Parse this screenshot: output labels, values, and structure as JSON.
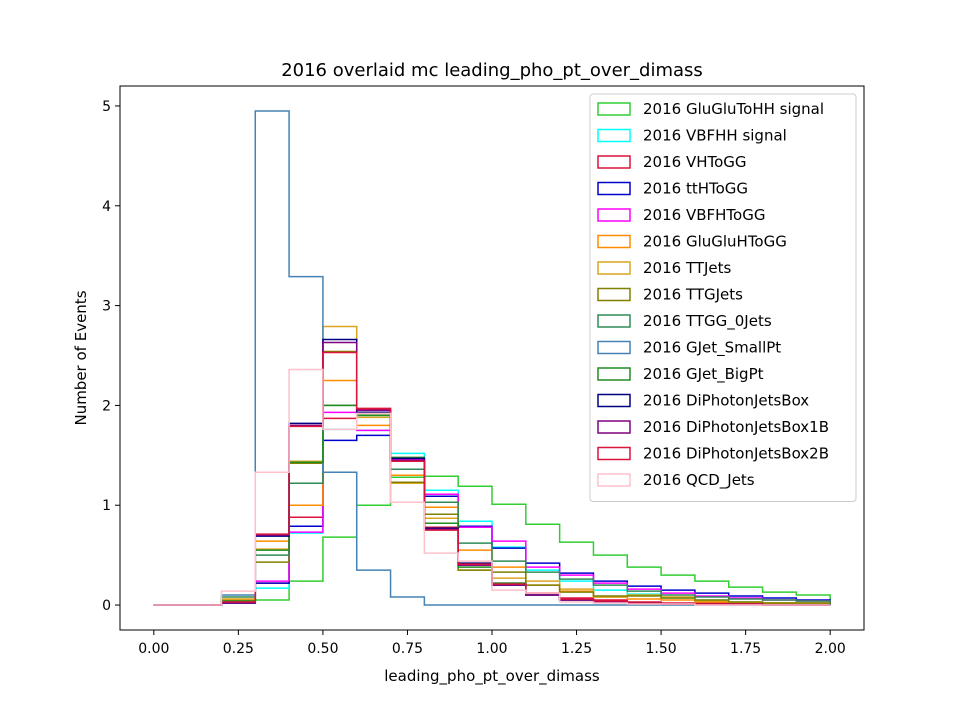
{
  "chart_data": {
    "type": "step-histogram",
    "title": "2016 overlaid mc leading_pho_pt_over_dimass",
    "xlabel": "leading_pho_pt_over_dimass",
    "ylabel": "Number of Events",
    "xlim": [
      -0.1,
      2.1
    ],
    "ylim": [
      -0.25,
      5.2
    ],
    "xticks": [
      0.0,
      0.25,
      0.5,
      0.75,
      1.0,
      1.25,
      1.5,
      1.75,
      2.0
    ],
    "xtick_labels": [
      "0.00",
      "0.25",
      "0.50",
      "0.75",
      "1.00",
      "1.25",
      "1.50",
      "1.75",
      "2.00"
    ],
    "yticks": [
      0,
      1,
      2,
      3,
      4,
      5
    ],
    "ytick_labels": [
      "0",
      "1",
      "2",
      "3",
      "4",
      "5"
    ],
    "bin_edges": [
      0.0,
      0.1,
      0.2,
      0.3,
      0.4,
      0.5,
      0.6,
      0.7,
      0.8,
      0.9,
      1.0,
      1.1,
      1.2,
      1.3,
      1.4,
      1.5,
      1.6,
      1.7,
      1.8,
      1.9,
      2.0
    ],
    "legend_position": "top-right",
    "series": [
      {
        "name": "2016 GluGluToHH signal",
        "color": "#32cd32",
        "values": [
          0,
          0,
          0.02,
          0.05,
          0.24,
          0.68,
          1.0,
          1.28,
          1.29,
          1.19,
          1.01,
          0.81,
          0.63,
          0.5,
          0.38,
          0.3,
          0.24,
          0.18,
          0.13,
          0.1
        ]
      },
      {
        "name": "2016 VBFHH signal",
        "color": "#00ffff",
        "values": [
          0,
          0,
          0.02,
          0.17,
          0.72,
          1.76,
          1.75,
          1.52,
          1.15,
          0.84,
          0.58,
          0.35,
          0.24,
          0.15,
          0.11,
          0.07,
          0.05,
          0.03,
          0.02,
          0.02
        ]
      },
      {
        "name": "2016 VHToGG",
        "color": "#dc143c",
        "values": [
          0,
          0,
          0.03,
          0.22,
          0.88,
          1.87,
          1.96,
          1.3,
          0.78,
          0.4,
          0.22,
          0.12,
          0.07,
          0.05,
          0.03,
          0.02,
          0.02,
          0.01,
          0.01,
          0.01
        ]
      },
      {
        "name": "2016 ttHToGG",
        "color": "#0000cd",
        "values": [
          0,
          0,
          0.02,
          0.22,
          0.79,
          1.65,
          1.7,
          1.44,
          1.09,
          0.79,
          0.57,
          0.42,
          0.32,
          0.24,
          0.19,
          0.15,
          0.12,
          0.09,
          0.07,
          0.05
        ]
      },
      {
        "name": "2016 VBFHToGG",
        "color": "#ff00ff",
        "values": [
          0,
          0,
          0.04,
          0.24,
          0.73,
          1.93,
          1.75,
          1.46,
          1.11,
          0.78,
          0.64,
          0.38,
          0.3,
          0.22,
          0.16,
          0.12,
          0.09,
          0.07,
          0.05,
          0.04
        ]
      },
      {
        "name": "2016 GluGluHToGG",
        "color": "#ff8c00",
        "values": [
          0,
          0,
          0.05,
          0.64,
          1.0,
          2.25,
          1.8,
          1.3,
          0.98,
          0.55,
          0.38,
          0.2,
          0.14,
          0.08,
          0.06,
          0.05,
          0.03,
          0.02,
          0.02,
          0.01
        ]
      },
      {
        "name": "2016 TTJets",
        "color": "#daa520",
        "values": [
          0,
          0,
          0.06,
          0.56,
          1.44,
          2.79,
          1.88,
          1.22,
          0.87,
          0.35,
          0.27,
          0.24,
          0.16,
          0.08,
          0.1,
          0.08,
          0.04,
          0.03,
          0.02,
          0.02
        ]
      },
      {
        "name": "2016 TTGJets",
        "color": "#808000",
        "values": [
          0,
          0,
          0.04,
          0.43,
          1.42,
          2.54,
          1.92,
          1.23,
          0.91,
          0.35,
          0.33,
          0.2,
          0.13,
          0.09,
          0.09,
          0.07,
          0.05,
          0.03,
          0.02,
          0.02
        ]
      },
      {
        "name": "2016 TTGG_0Jets",
        "color": "#2e8b57",
        "values": [
          0,
          0,
          0.08,
          0.5,
          1.22,
          2.0,
          1.9,
          1.36,
          1.03,
          0.62,
          0.44,
          0.33,
          0.26,
          0.2,
          0.14,
          0.1,
          0.08,
          0.06,
          0.05,
          0.04
        ]
      },
      {
        "name": "2016 GJet_SmallPt",
        "color": "#4682b4",
        "values": [
          0,
          0,
          0.1,
          4.95,
          3.29,
          1.33,
          0.35,
          0.08,
          0.0,
          0.0,
          0.0,
          0.0,
          0.0,
          0.0,
          0.0,
          0.0,
          0.0,
          0.0,
          0.0,
          0.0
        ]
      },
      {
        "name": "2016 GJet_BigPt",
        "color": "#228b22",
        "values": [
          0,
          0,
          0.04,
          0.55,
          1.43,
          2.0,
          1.9,
          1.48,
          0.82,
          0.38,
          0.22,
          0.1,
          0.05,
          0.03,
          0.02,
          0.01,
          0.01,
          0.01,
          0.0,
          0.0
        ]
      },
      {
        "name": "2016 DiPhotonJetsBox",
        "color": "#000080",
        "values": [
          0,
          0,
          0.02,
          0.69,
          1.82,
          2.66,
          1.93,
          1.47,
          0.77,
          0.42,
          0.2,
          0.1,
          0.05,
          0.03,
          0.02,
          0.01,
          0.01,
          0.01,
          0.0,
          0.0
        ]
      },
      {
        "name": "2016 DiPhotonJetsBox1B",
        "color": "#800080",
        "values": [
          0,
          0,
          0.02,
          0.7,
          1.8,
          2.63,
          1.95,
          1.45,
          0.76,
          0.4,
          0.2,
          0.1,
          0.05,
          0.03,
          0.02,
          0.01,
          0.01,
          0.01,
          0.0,
          0.0
        ]
      },
      {
        "name": "2016 DiPhotonJetsBox2B",
        "color": "#dc143c",
        "values": [
          0,
          0,
          0.03,
          0.71,
          1.79,
          2.53,
          1.97,
          1.44,
          0.75,
          0.41,
          0.21,
          0.12,
          0.06,
          0.04,
          0.02,
          0.01,
          0.01,
          0.01,
          0.0,
          0.0
        ]
      },
      {
        "name": "2016 QCD_Jets",
        "color": "#ffc0cb",
        "values": [
          0,
          0,
          0.14,
          1.33,
          2.36,
          1.76,
          1.92,
          1.03,
          0.52,
          0.44,
          0.15,
          0.12,
          0.03,
          0.02,
          0.01,
          0.01,
          0.0,
          0.0,
          0.0,
          0.0
        ]
      }
    ]
  }
}
